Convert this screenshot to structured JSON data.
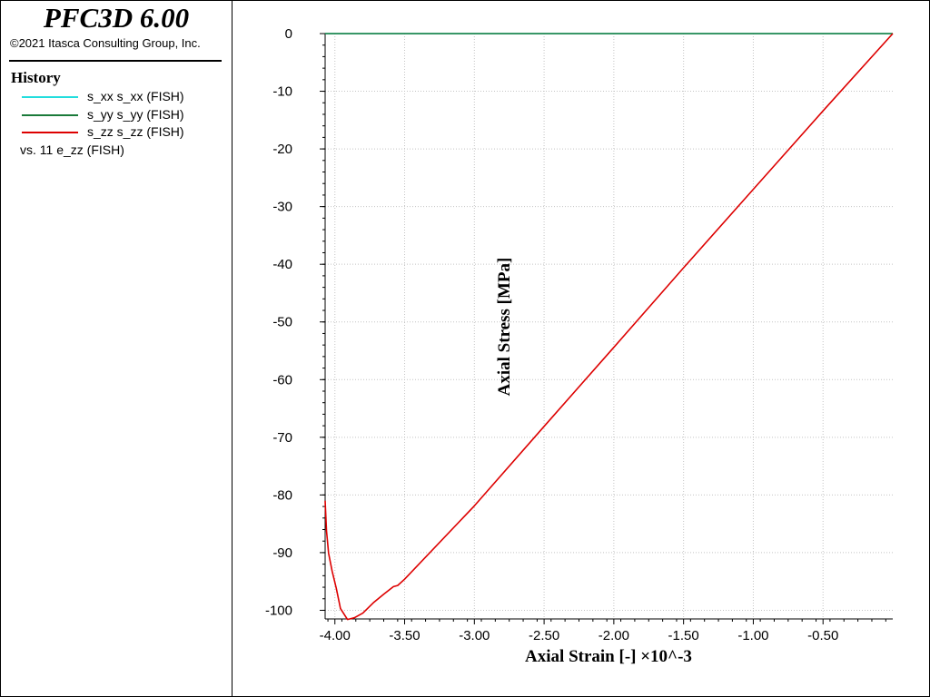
{
  "app": {
    "title": "PFC3D 6.00",
    "copyright": "©2021 Itasca Consulting Group, Inc."
  },
  "legend": {
    "heading": "History",
    "items": [
      {
        "label": "s_xx s_xx (FISH)",
        "color": "#22dddd"
      },
      {
        "label": "s_yy s_yy (FISH)",
        "color": "#1a7a3a"
      },
      {
        "label": "s_zz s_zz (FISH)",
        "color": "#dd0000"
      }
    ],
    "vs_label": "vs. 11 e_zz (FISH)"
  },
  "chart_data": {
    "type": "line",
    "xlabel": "Axial Strain [-] ×10^-3",
    "ylabel": "Axial Stress [MPa]",
    "xlim": [
      -4.07,
      0.0
    ],
    "ylim": [
      -101.5,
      0
    ],
    "x_ticks": [
      -4.0,
      -3.5,
      -3.0,
      -2.5,
      -2.0,
      -1.5,
      -1.0,
      -0.5
    ],
    "x_tick_labels": [
      "-4.00",
      "-3.50",
      "-3.00",
      "-2.50",
      "-2.00",
      "-1.50",
      "-1.00",
      "-0.50"
    ],
    "y_ticks": [
      0,
      -10,
      -20,
      -30,
      -40,
      -50,
      -60,
      -70,
      -80,
      -90,
      -100
    ],
    "y_tick_labels": [
      "0",
      "-10",
      "-20",
      "-30",
      "-40",
      "-50",
      "-60",
      "-70",
      "-80",
      "-90",
      "-100"
    ],
    "grid": true,
    "series": [
      {
        "name": "s_xx s_xx (FISH)",
        "color": "#22dddd",
        "x": [
          -4.07,
          0.0
        ],
        "y": [
          0,
          0
        ]
      },
      {
        "name": "s_yy s_yy (FISH)",
        "color": "#1a7a3a",
        "x": [
          -4.07,
          0.0
        ],
        "y": [
          0,
          0
        ]
      },
      {
        "name": "s_zz s_zz (FISH)",
        "color": "#dd0000",
        "x": [
          0.0,
          -0.5,
          -1.0,
          -1.5,
          -2.0,
          -2.5,
          -3.0,
          -3.5,
          -3.55,
          -3.58,
          -3.65,
          -3.72,
          -3.8,
          -3.86,
          -3.91,
          -3.96,
          -3.99,
          -4.02,
          -4.045,
          -4.06,
          -4.07
        ],
        "y": [
          0,
          -13.4,
          -27.0,
          -40.6,
          -54.4,
          -68.1,
          -81.9,
          -94.6,
          -95.7,
          -95.9,
          -97.2,
          -98.6,
          -100.5,
          -101.3,
          -101.6,
          -99.7,
          -96.2,
          -93.2,
          -90.1,
          -86.2,
          -81.0
        ]
      }
    ]
  }
}
